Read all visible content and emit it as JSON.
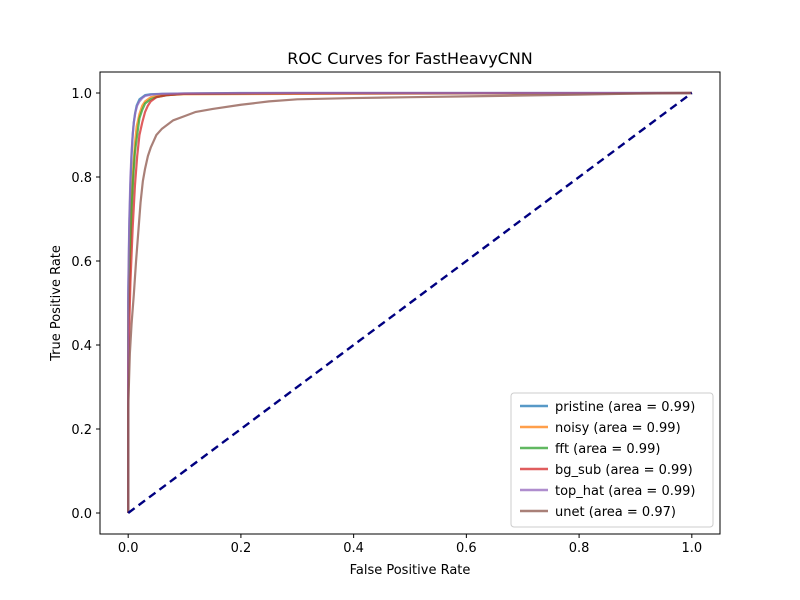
{
  "chart_data": {
    "type": "line",
    "title": "ROC Curves for FastHeavyCNN",
    "xlabel": "False Positive Rate",
    "ylabel": "True Positive Rate",
    "xlim": [
      -0.05,
      1.05
    ],
    "ylim": [
      -0.05,
      1.05
    ],
    "xticks": [
      "0.0",
      "0.2",
      "0.4",
      "0.6",
      "0.8",
      "1.0"
    ],
    "yticks": [
      "0.0",
      "0.2",
      "0.4",
      "0.6",
      "0.8",
      "1.0"
    ],
    "grid": false,
    "legend_position": "lower-right",
    "diagonal": {
      "color": "#000080",
      "style": "dashed",
      "x": [
        0,
        1
      ],
      "y": [
        0,
        1
      ]
    },
    "series": [
      {
        "name": "pristine (area = 0.99)",
        "color": "#1f77b4",
        "x": [
          0.0,
          0.0,
          0.002,
          0.004,
          0.006,
          0.008,
          0.01,
          0.012,
          0.015,
          0.02,
          0.025,
          0.03,
          0.04,
          0.06,
          0.1,
          0.2,
          0.5,
          1.0
        ],
        "y": [
          0.0,
          0.5,
          0.68,
          0.78,
          0.85,
          0.9,
          0.93,
          0.95,
          0.97,
          0.985,
          0.99,
          0.995,
          0.997,
          0.998,
          0.999,
          1.0,
          1.0,
          1.0
        ]
      },
      {
        "name": "noisy (area = 0.99)",
        "color": "#ff7f0e",
        "x": [
          0.0,
          0.0,
          0.003,
          0.006,
          0.009,
          0.012,
          0.015,
          0.02,
          0.025,
          0.03,
          0.04,
          0.06,
          0.1,
          0.3,
          0.6,
          1.0
        ],
        "y": [
          0.0,
          0.45,
          0.62,
          0.74,
          0.82,
          0.88,
          0.92,
          0.95,
          0.97,
          0.98,
          0.99,
          0.995,
          0.997,
          0.998,
          0.999,
          1.0
        ]
      },
      {
        "name": "fft (area = 0.99)",
        "color": "#2ca02c",
        "x": [
          0.0,
          0.0,
          0.003,
          0.006,
          0.009,
          0.012,
          0.016,
          0.02,
          0.025,
          0.03,
          0.04,
          0.05,
          0.07,
          0.1,
          0.3,
          1.0
        ],
        "y": [
          0.0,
          0.42,
          0.6,
          0.72,
          0.8,
          0.86,
          0.9,
          0.94,
          0.96,
          0.975,
          0.985,
          0.99,
          0.995,
          0.998,
          0.999,
          1.0
        ]
      },
      {
        "name": "bg_sub (area = 0.99)",
        "color": "#d62728",
        "x": [
          0.0,
          0.0,
          0.004,
          0.008,
          0.012,
          0.016,
          0.02,
          0.025,
          0.03,
          0.035,
          0.04,
          0.05,
          0.07,
          0.1,
          0.3,
          1.0
        ],
        "y": [
          0.0,
          0.35,
          0.55,
          0.68,
          0.78,
          0.85,
          0.9,
          0.93,
          0.955,
          0.97,
          0.98,
          0.99,
          0.995,
          0.998,
          0.999,
          1.0
        ]
      },
      {
        "name": "top_hat (area = 0.99)",
        "color": "#9467bd",
        "x": [
          0.0,
          0.0,
          0.002,
          0.004,
          0.006,
          0.008,
          0.01,
          0.013,
          0.016,
          0.02,
          0.025,
          0.03,
          0.04,
          0.06,
          0.1,
          0.3,
          1.0
        ],
        "y": [
          0.0,
          0.52,
          0.7,
          0.8,
          0.86,
          0.9,
          0.93,
          0.955,
          0.97,
          0.98,
          0.988,
          0.993,
          0.996,
          0.998,
          0.999,
          1.0,
          1.0
        ]
      },
      {
        "name": "unet (area = 0.97)",
        "color": "#8c564b",
        "x": [
          0.0,
          0.0,
          0.003,
          0.006,
          0.01,
          0.014,
          0.018,
          0.022,
          0.026,
          0.03,
          0.035,
          0.04,
          0.045,
          0.05,
          0.06,
          0.07,
          0.08,
          0.1,
          0.12,
          0.15,
          0.2,
          0.25,
          0.3,
          0.4,
          0.5,
          0.6,
          0.7,
          0.8,
          0.87,
          1.0
        ],
        "y": [
          0.0,
          0.25,
          0.38,
          0.45,
          0.52,
          0.6,
          0.67,
          0.74,
          0.79,
          0.82,
          0.85,
          0.87,
          0.885,
          0.9,
          0.915,
          0.925,
          0.935,
          0.945,
          0.955,
          0.962,
          0.972,
          0.98,
          0.985,
          0.988,
          0.99,
          0.992,
          0.994,
          0.996,
          0.998,
          1.0
        ]
      }
    ]
  }
}
